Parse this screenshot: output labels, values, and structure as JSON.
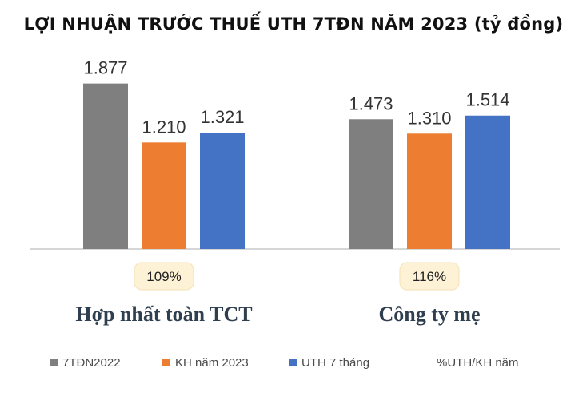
{
  "chart_data": {
    "type": "bar",
    "title": "LỢI NHUẬN TRƯỚC THUẾ UTH 7TĐN NĂM 2023 (tỷ đồng)",
    "categories": [
      "Hợp nhất toàn TCT",
      "Công ty mẹ"
    ],
    "series": [
      {
        "name": "7TĐN2022",
        "values": [
          1877,
          1473
        ],
        "labels": [
          "1.877",
          "1.473"
        ],
        "color": "#7f7f7f"
      },
      {
        "name": "KH năm 2023",
        "values": [
          1210,
          1310
        ],
        "labels": [
          "1.210",
          "1.310"
        ],
        "color": "#ed7d31"
      },
      {
        "name": "UTH 7 tháng",
        "values": [
          1321,
          1514
        ],
        "labels": [
          "1.321",
          "1.514"
        ],
        "color": "#4472c4"
      }
    ],
    "ratio_series": {
      "name": "%UTH/KH năm",
      "labels": [
        "109%",
        "116%"
      ],
      "color": "#fdf2d6"
    },
    "ylim": [
      0,
      2100
    ],
    "legend_position": "bottom",
    "grid": false
  }
}
